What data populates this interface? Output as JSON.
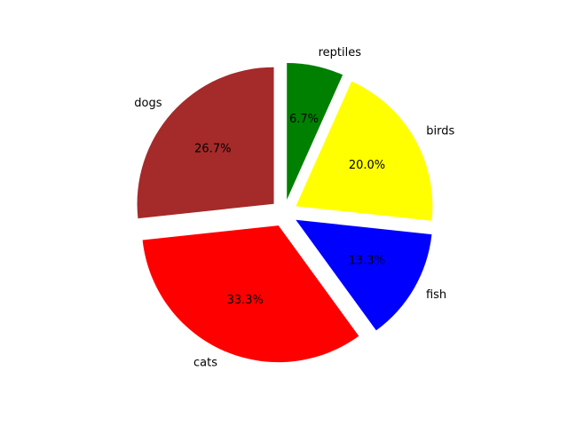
{
  "chart_data": {
    "type": "pie",
    "categories": [
      "dogs",
      "cats",
      "fish",
      "birds",
      "reptiles"
    ],
    "values": [
      26.7,
      33.3,
      13.3,
      20.0,
      6.7
    ],
    "percent_labels": [
      "26.7%",
      "33.3%",
      "13.3%",
      "20.0%",
      "6.7%"
    ],
    "colors": [
      "#a52a2a",
      "#ff0000",
      "#0000ff",
      "#ffff00",
      "#008000"
    ],
    "exploded": true,
    "legend": "none",
    "title": ""
  }
}
